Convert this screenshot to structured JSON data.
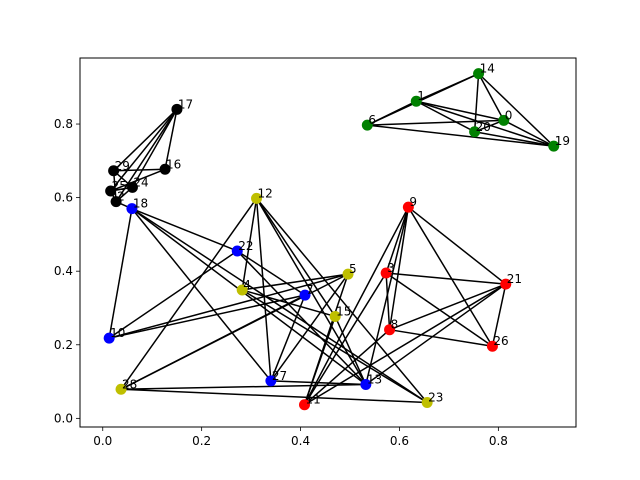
{
  "chart_data": {
    "type": "scatter",
    "title": "",
    "xlabel": "",
    "ylabel": "",
    "xlim": [
      -0.046,
      0.957
    ],
    "ylim": [
      -0.0235,
      0.9795
    ],
    "xticks": [
      0.0,
      0.2,
      0.4,
      0.6,
      0.8
    ],
    "xtick_labels": [
      "0.0",
      "0.2",
      "0.4",
      "0.6",
      "0.8"
    ],
    "yticks": [
      0.0,
      0.2,
      0.4,
      0.6,
      0.8
    ],
    "ytick_labels": [
      "0.0",
      "0.2",
      "0.4",
      "0.6",
      "0.8"
    ],
    "grid": false,
    "legend": false,
    "group_colors": {
      "black": "#000000",
      "blue": "#0000ff",
      "green": "#008000",
      "red": "#ff0000",
      "olive": "#bfbf00"
    },
    "nodes": [
      {
        "id": 0,
        "label": "0",
        "x": 0.811,
        "y": 0.81,
        "group": "green"
      },
      {
        "id": 1,
        "label": "1",
        "x": 0.634,
        "y": 0.862,
        "group": "green"
      },
      {
        "id": 2,
        "label": "2",
        "x": 0.027,
        "y": 0.589,
        "group": "black"
      },
      {
        "id": 3,
        "label": "3",
        "x": 0.573,
        "y": 0.395,
        "group": "red"
      },
      {
        "id": 4,
        "label": "4",
        "x": 0.282,
        "y": 0.349,
        "group": "olive"
      },
      {
        "id": 5,
        "label": "5",
        "x": 0.496,
        "y": 0.392,
        "group": "olive"
      },
      {
        "id": 6,
        "label": "6",
        "x": 0.535,
        "y": 0.797,
        "group": "green"
      },
      {
        "id": 7,
        "label": "7",
        "x": 0.409,
        "y": 0.335,
        "group": "blue"
      },
      {
        "id": 8,
        "label": "8",
        "x": 0.58,
        "y": 0.241,
        "group": "red"
      },
      {
        "id": 9,
        "label": "9",
        "x": 0.618,
        "y": 0.574,
        "group": "red"
      },
      {
        "id": 10,
        "label": "10",
        "x": 0.013,
        "y": 0.218,
        "group": "blue"
      },
      {
        "id": 11,
        "label": "11",
        "x": 0.408,
        "y": 0.037,
        "group": "red"
      },
      {
        "id": 12,
        "label": "12",
        "x": 0.311,
        "y": 0.598,
        "group": "olive"
      },
      {
        "id": 13,
        "label": "13",
        "x": 0.532,
        "y": 0.092,
        "group": "blue"
      },
      {
        "id": 14,
        "label": "14",
        "x": 0.76,
        "y": 0.937,
        "group": "green"
      },
      {
        "id": 15,
        "label": "15",
        "x": 0.47,
        "y": 0.277,
        "group": "olive"
      },
      {
        "id": 16,
        "label": "16",
        "x": 0.126,
        "y": 0.677,
        "group": "black"
      },
      {
        "id": 17,
        "label": "17",
        "x": 0.15,
        "y": 0.84,
        "group": "black"
      },
      {
        "id": 18,
        "label": "18",
        "x": 0.059,
        "y": 0.57,
        "group": "blue"
      },
      {
        "id": 19,
        "label": "19",
        "x": 0.912,
        "y": 0.74,
        "group": "green"
      },
      {
        "id": 20,
        "label": "20",
        "x": 0.752,
        "y": 0.779,
        "group": "green"
      },
      {
        "id": 21,
        "label": "21",
        "x": 0.815,
        "y": 0.365,
        "group": "red"
      },
      {
        "id": 22,
        "label": "22",
        "x": 0.272,
        "y": 0.455,
        "group": "blue"
      },
      {
        "id": 23,
        "label": "23",
        "x": 0.656,
        "y": 0.043,
        "group": "olive"
      },
      {
        "id": 24,
        "label": "24",
        "x": 0.06,
        "y": 0.628,
        "group": "black"
      },
      {
        "id": 25,
        "label": "25",
        "x": 0.016,
        "y": 0.618,
        "group": "black"
      },
      {
        "id": 26,
        "label": "26",
        "x": 0.788,
        "y": 0.196,
        "group": "red"
      },
      {
        "id": 27,
        "label": "27",
        "x": 0.34,
        "y": 0.102,
        "group": "blue"
      },
      {
        "id": 28,
        "label": "28",
        "x": 0.037,
        "y": 0.079,
        "group": "olive"
      },
      {
        "id": 29,
        "label": "29",
        "x": 0.022,
        "y": 0.673,
        "group": "black"
      }
    ],
    "edges": [
      [
        14,
        1
      ],
      [
        14,
        20
      ],
      [
        14,
        0
      ],
      [
        14,
        19
      ],
      [
        14,
        6
      ],
      [
        1,
        6
      ],
      [
        1,
        20
      ],
      [
        1,
        0
      ],
      [
        1,
        19
      ],
      [
        6,
        19
      ],
      [
        6,
        0
      ],
      [
        0,
        20
      ],
      [
        20,
        19
      ],
      [
        0,
        19
      ],
      [
        17,
        29
      ],
      [
        17,
        25
      ],
      [
        17,
        2
      ],
      [
        17,
        24
      ],
      [
        17,
        16
      ],
      [
        29,
        16
      ],
      [
        29,
        24
      ],
      [
        29,
        2
      ],
      [
        25,
        24
      ],
      [
        25,
        16
      ],
      [
        2,
        24
      ],
      [
        25,
        2
      ],
      [
        18,
        10
      ],
      [
        18,
        2
      ],
      [
        18,
        22
      ],
      [
        18,
        27
      ],
      [
        18,
        13
      ],
      [
        18,
        23
      ],
      [
        10,
        22
      ],
      [
        10,
        5
      ],
      [
        10,
        7
      ],
      [
        22,
        13
      ],
      [
        22,
        7
      ],
      [
        7,
        27
      ],
      [
        7,
        28
      ],
      [
        27,
        13
      ],
      [
        27,
        12
      ],
      [
        27,
        5
      ],
      [
        12,
        28
      ],
      [
        12,
        13
      ],
      [
        12,
        15
      ],
      [
        12,
        23
      ],
      [
        28,
        5
      ],
      [
        28,
        13
      ],
      [
        28,
        23
      ],
      [
        4,
        5
      ],
      [
        4,
        15
      ],
      [
        4,
        23
      ],
      [
        4,
        12
      ],
      [
        15,
        13
      ],
      [
        15,
        11
      ],
      [
        5,
        11
      ],
      [
        9,
        3
      ],
      [
        9,
        8
      ],
      [
        9,
        26
      ],
      [
        9,
        21
      ],
      [
        9,
        11
      ],
      [
        9,
        13
      ],
      [
        3,
        21
      ],
      [
        3,
        8
      ],
      [
        3,
        26
      ],
      [
        3,
        11
      ],
      [
        8,
        21
      ],
      [
        8,
        26
      ],
      [
        21,
        26
      ],
      [
        21,
        11
      ],
      [
        21,
        13
      ],
      [
        11,
        8
      ]
    ]
  }
}
